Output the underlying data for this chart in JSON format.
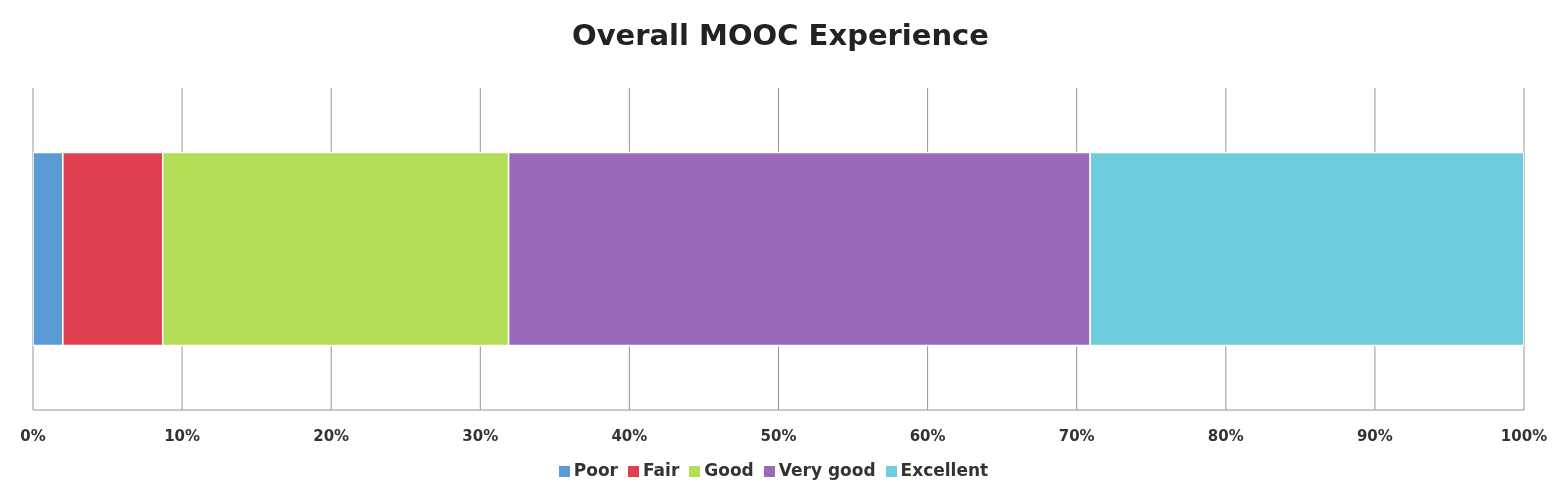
{
  "chart_data": {
    "type": "bar",
    "title": "Overall MOOC Experience",
    "orientation": "horizontal",
    "stacked": true,
    "categories": [
      null
    ],
    "series": [
      {
        "name": "Poor",
        "color": "#5b9bd5",
        "values": [
          2.0
        ]
      },
      {
        "name": "Fair",
        "color": "#e04050",
        "values": [
          6.7
        ]
      },
      {
        "name": "Good",
        "color": "#b5dd55",
        "values": [
          23.2
        ]
      },
      {
        "name": "Very good",
        "color": "#9b69b9",
        "values": [
          39.0
        ]
      },
      {
        "name": "Excellent",
        "color": "#6ecddc",
        "values": [
          29.1
        ]
      }
    ],
    "xlim": [
      0,
      100
    ],
    "xticks": [
      {
        "value": 0,
        "label": "0%"
      },
      {
        "value": 10,
        "label": "10%"
      },
      {
        "value": 20,
        "label": "20%"
      },
      {
        "value": 30,
        "label": "30%"
      },
      {
        "value": 40,
        "label": "40%"
      },
      {
        "value": 50,
        "label": "50%"
      },
      {
        "value": 60,
        "label": "60%"
      },
      {
        "value": 70,
        "label": "70%"
      },
      {
        "value": 80,
        "label": "80%"
      },
      {
        "value": 90,
        "label": "90%"
      },
      {
        "value": 100,
        "label": "100%"
      }
    ],
    "grid": "x",
    "legend": "bottom"
  }
}
